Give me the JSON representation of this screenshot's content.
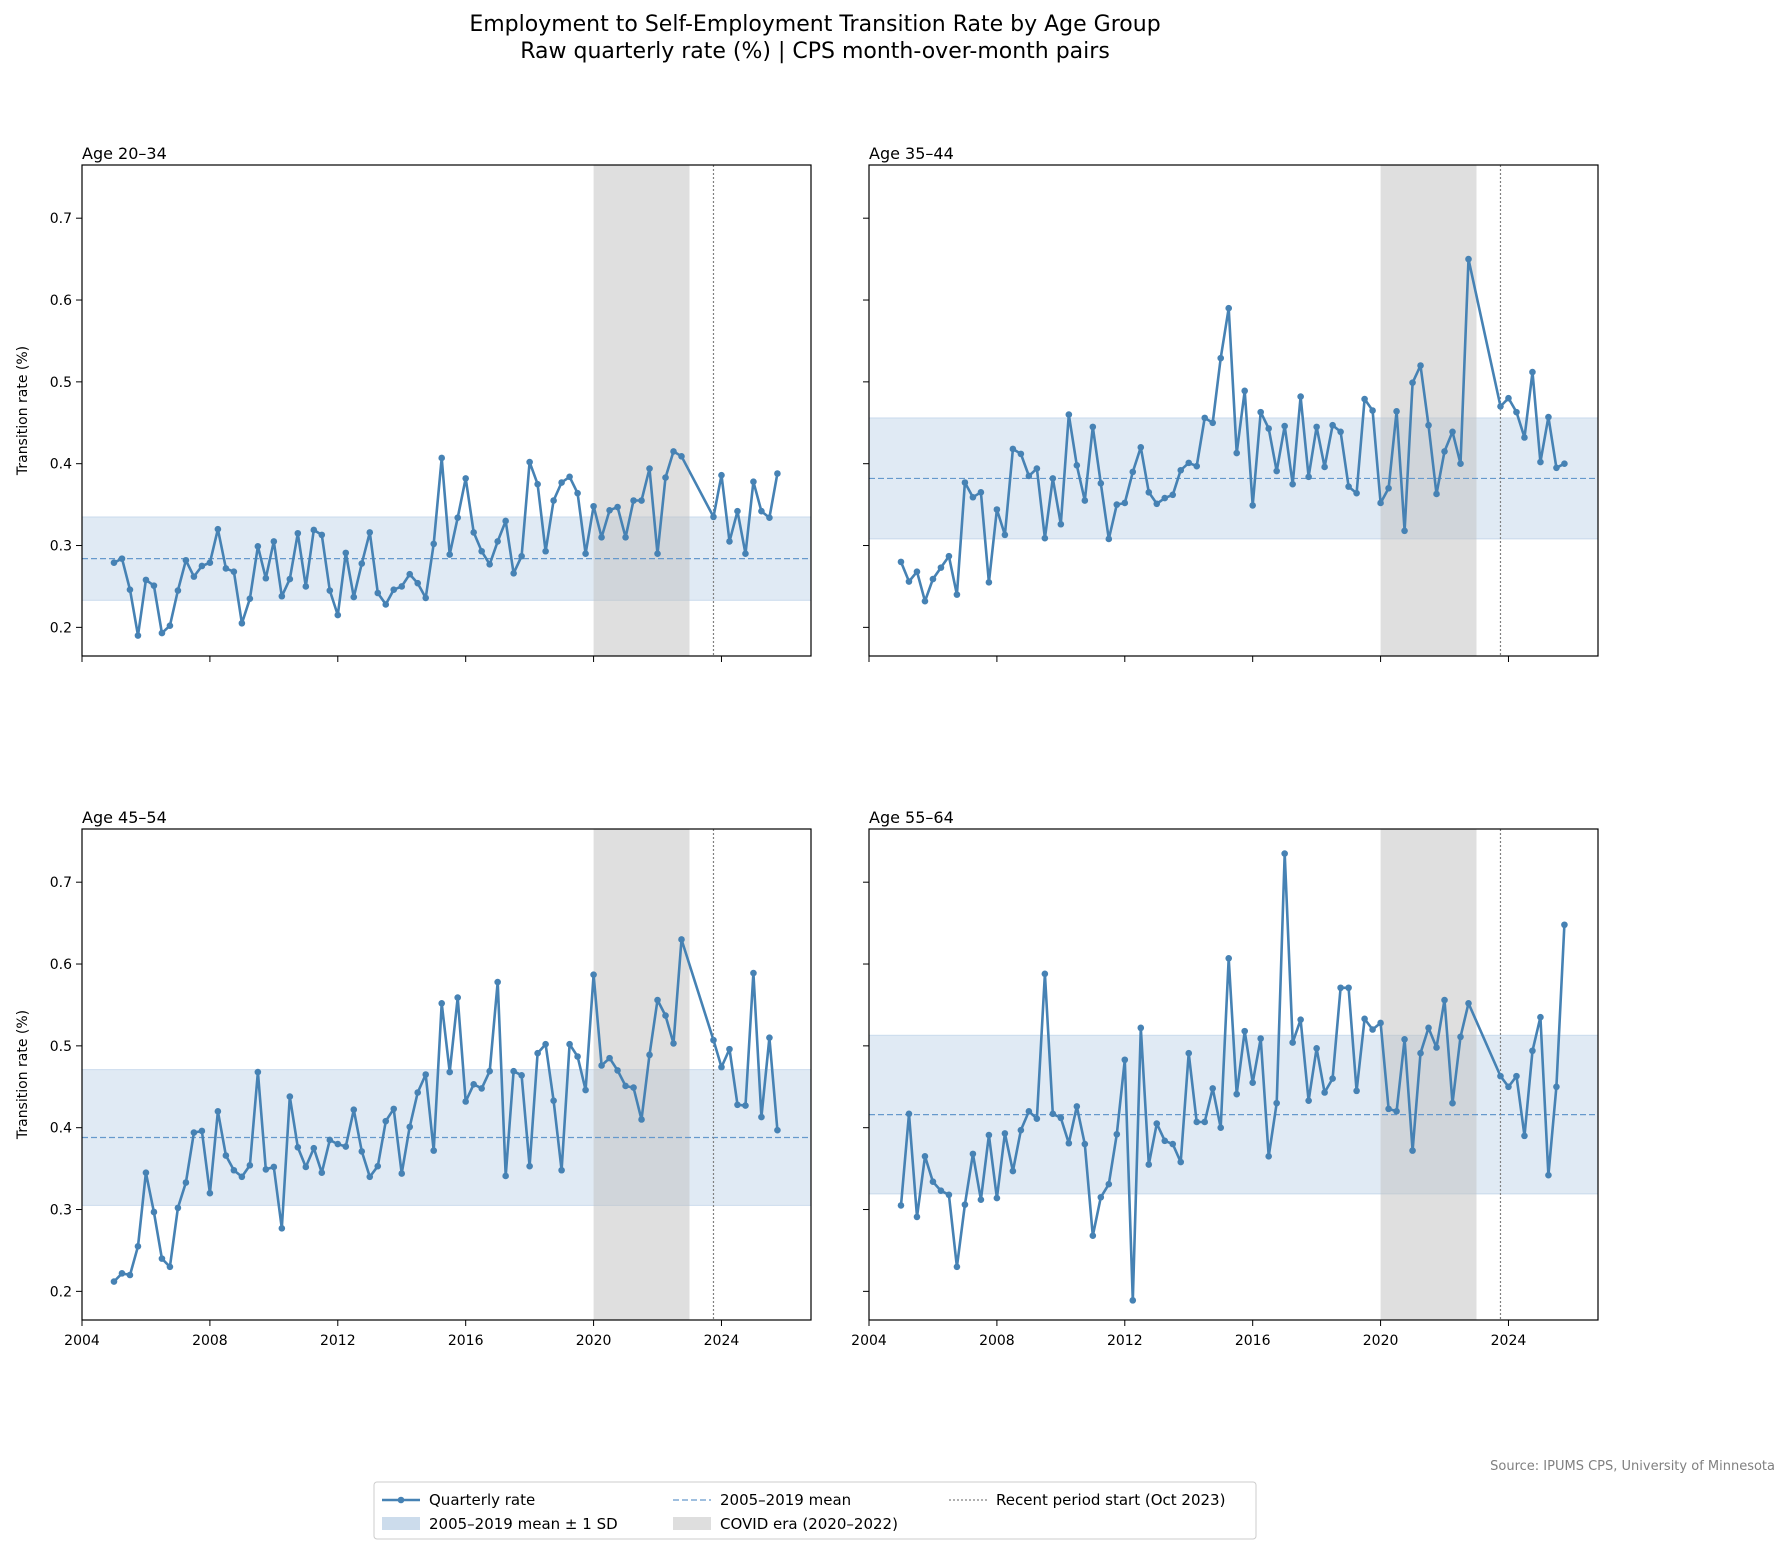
{
  "chart_data": {
    "type": "line",
    "title": "Employment to Self-Employment Transition Rate by Age Group",
    "subtitle": "Raw quarterly rate (%)  |  CPS month-over-month pairs",
    "source": "Source: IPUMS CPS, University of Minnesota",
    "ylabel": "Transition rate (%)",
    "xlim": [
      2004,
      2026.8
    ],
    "ylim": [
      0.165,
      0.765
    ],
    "x_ticks": [
      2004,
      2008,
      2012,
      2016,
      2020,
      2024
    ],
    "x_tick_labels": [
      "2004",
      "2008",
      "2012",
      "2016",
      "2020",
      "2024"
    ],
    "y_ticks": [
      0.2,
      0.3,
      0.4,
      0.5,
      0.6,
      0.7
    ],
    "y_tick_labels": [
      "0.2",
      "0.3",
      "0.4",
      "0.5",
      "0.6",
      "0.7"
    ],
    "grid": false,
    "covid_era": [
      2020,
      2023
    ],
    "recent_period_start": 2023.75,
    "legend": {
      "position": "bottom-center",
      "entries": [
        {
          "key": "rate",
          "label": "Quarterly rate"
        },
        {
          "key": "mean",
          "label": "2005–2019 mean"
        },
        {
          "key": "recent",
          "label": "Recent period start (Oct 2023)"
        },
        {
          "key": "band",
          "label": "2005–2019 mean ± 1 SD"
        },
        {
          "key": "covid",
          "label": "COVID era (2020–2022)"
        }
      ]
    },
    "colors": {
      "line": "#4682b4",
      "mean": "#6699cc",
      "band": "#ccdcec",
      "covid": "#bfbfbf",
      "recent": "#808080"
    },
    "quarters_x": [
      2005.0,
      2005.25,
      2005.5,
      2005.75,
      2006.0,
      2006.25,
      2006.5,
      2006.75,
      2007.0,
      2007.25,
      2007.5,
      2007.75,
      2008.0,
      2008.25,
      2008.5,
      2008.75,
      2009.0,
      2009.25,
      2009.5,
      2009.75,
      2010.0,
      2010.25,
      2010.5,
      2010.75,
      2011.0,
      2011.25,
      2011.5,
      2011.75,
      2012.0,
      2012.25,
      2012.5,
      2012.75,
      2013.0,
      2013.25,
      2013.5,
      2013.75,
      2014.0,
      2014.25,
      2014.5,
      2014.75,
      2015.0,
      2015.25,
      2015.5,
      2015.75,
      2016.0,
      2016.25,
      2016.5,
      2016.75,
      2017.0,
      2017.25,
      2017.5,
      2017.75,
      2018.0,
      2018.25,
      2018.5,
      2018.75,
      2019.0,
      2019.25,
      2019.5,
      2019.75,
      2020.0,
      2020.25,
      2020.5,
      2020.75,
      2021.0,
      2021.25,
      2021.5,
      2021.75,
      2022.0,
      2022.25,
      2022.5,
      2022.75,
      2023.75,
      2024.0,
      2024.25,
      2024.5,
      2024.75,
      2025.0,
      2025.25,
      2025.5,
      2025.75
    ],
    "panels": [
      {
        "title": "Age 20–34",
        "mean": 0.284,
        "sd": 0.051,
        "y": [
          0.279,
          0.284,
          0.246,
          0.19,
          0.258,
          0.251,
          0.193,
          0.202,
          0.245,
          0.282,
          0.262,
          0.275,
          0.279,
          0.32,
          0.272,
          0.268,
          0.205,
          0.235,
          0.299,
          0.26,
          0.305,
          0.238,
          0.259,
          0.315,
          0.25,
          0.319,
          0.313,
          0.245,
          0.215,
          0.291,
          0.237,
          0.278,
          0.316,
          0.242,
          0.228,
          0.246,
          0.25,
          0.265,
          0.254,
          0.236,
          0.302,
          0.407,
          0.289,
          0.334,
          0.382,
          0.316,
          0.293,
          0.277,
          0.305,
          0.33,
          0.266,
          0.287,
          0.402,
          0.375,
          0.293,
          0.355,
          0.377,
          0.384,
          0.364,
          0.29,
          0.348,
          0.31,
          0.343,
          0.347,
          0.31,
          0.355,
          0.355,
          0.394,
          0.29,
          0.383,
          0.415,
          0.409,
          0.335,
          0.386,
          0.305,
          0.342,
          0.29,
          0.378,
          0.342,
          0.334,
          0.388
        ]
      },
      {
        "title": "Age 35–44",
        "mean": 0.382,
        "sd": 0.074,
        "y": [
          0.28,
          0.256,
          0.268,
          0.232,
          0.259,
          0.273,
          0.287,
          0.24,
          0.377,
          0.359,
          0.365,
          0.255,
          0.344,
          0.313,
          0.418,
          0.412,
          0.385,
          0.394,
          0.309,
          0.382,
          0.326,
          0.46,
          0.398,
          0.355,
          0.445,
          0.376,
          0.308,
          0.35,
          0.352,
          0.39,
          0.42,
          0.365,
          0.351,
          0.358,
          0.362,
          0.392,
          0.401,
          0.397,
          0.456,
          0.45,
          0.529,
          0.59,
          0.413,
          0.489,
          0.349,
          0.463,
          0.443,
          0.391,
          0.446,
          0.375,
          0.482,
          0.384,
          0.445,
          0.396,
          0.447,
          0.439,
          0.372,
          0.364,
          0.479,
          0.465,
          0.352,
          0.37,
          0.464,
          0.318,
          0.499,
          0.52,
          0.447,
          0.363,
          0.415,
          0.439,
          0.4,
          0.65,
          0.47,
          0.48,
          0.463,
          0.432,
          0.512,
          0.402,
          0.457,
          0.395,
          0.4
        ]
      },
      {
        "title": "Age 45–54",
        "mean": 0.388,
        "sd": 0.083,
        "y": [
          0.212,
          0.222,
          0.22,
          0.255,
          0.345,
          0.297,
          0.24,
          0.23,
          0.302,
          0.333,
          0.394,
          0.396,
          0.32,
          0.42,
          0.366,
          0.348,
          0.34,
          0.354,
          0.468,
          0.349,
          0.352,
          0.277,
          0.438,
          0.376,
          0.352,
          0.375,
          0.345,
          0.385,
          0.38,
          0.377,
          0.422,
          0.371,
          0.34,
          0.353,
          0.408,
          0.423,
          0.344,
          0.401,
          0.443,
          0.465,
          0.372,
          0.552,
          0.468,
          0.559,
          0.432,
          0.453,
          0.448,
          0.469,
          0.578,
          0.341,
          0.469,
          0.464,
          0.353,
          0.491,
          0.502,
          0.433,
          0.348,
          0.502,
          0.487,
          0.446,
          0.587,
          0.476,
          0.485,
          0.47,
          0.451,
          0.449,
          0.41,
          0.489,
          0.556,
          0.537,
          0.503,
          0.63,
          0.507,
          0.474,
          0.496,
          0.428,
          0.427,
          0.589,
          0.413,
          0.51,
          0.397
        ]
      },
      {
        "title": "Age 55–64",
        "mean": 0.416,
        "sd": 0.097,
        "y": [
          0.305,
          0.417,
          0.291,
          0.365,
          0.334,
          0.323,
          0.318,
          0.23,
          0.306,
          0.368,
          0.312,
          0.391,
          0.314,
          0.393,
          0.347,
          0.397,
          0.42,
          0.411,
          0.588,
          0.417,
          0.412,
          0.381,
          0.426,
          0.38,
          0.268,
          0.315,
          0.331,
          0.392,
          0.483,
          0.189,
          0.522,
          0.355,
          0.405,
          0.384,
          0.38,
          0.358,
          0.491,
          0.407,
          0.407,
          0.448,
          0.4,
          0.607,
          0.441,
          0.518,
          0.455,
          0.509,
          0.365,
          0.43,
          0.735,
          0.504,
          0.532,
          0.433,
          0.497,
          0.443,
          0.46,
          0.571,
          0.571,
          0.445,
          0.533,
          0.52,
          0.528,
          0.423,
          0.42,
          0.508,
          0.372,
          0.491,
          0.522,
          0.498,
          0.556,
          0.43,
          0.511,
          0.552,
          0.463,
          0.45,
          0.463,
          0.39,
          0.494,
          0.535,
          0.342,
          0.45,
          0.648
        ]
      }
    ]
  }
}
